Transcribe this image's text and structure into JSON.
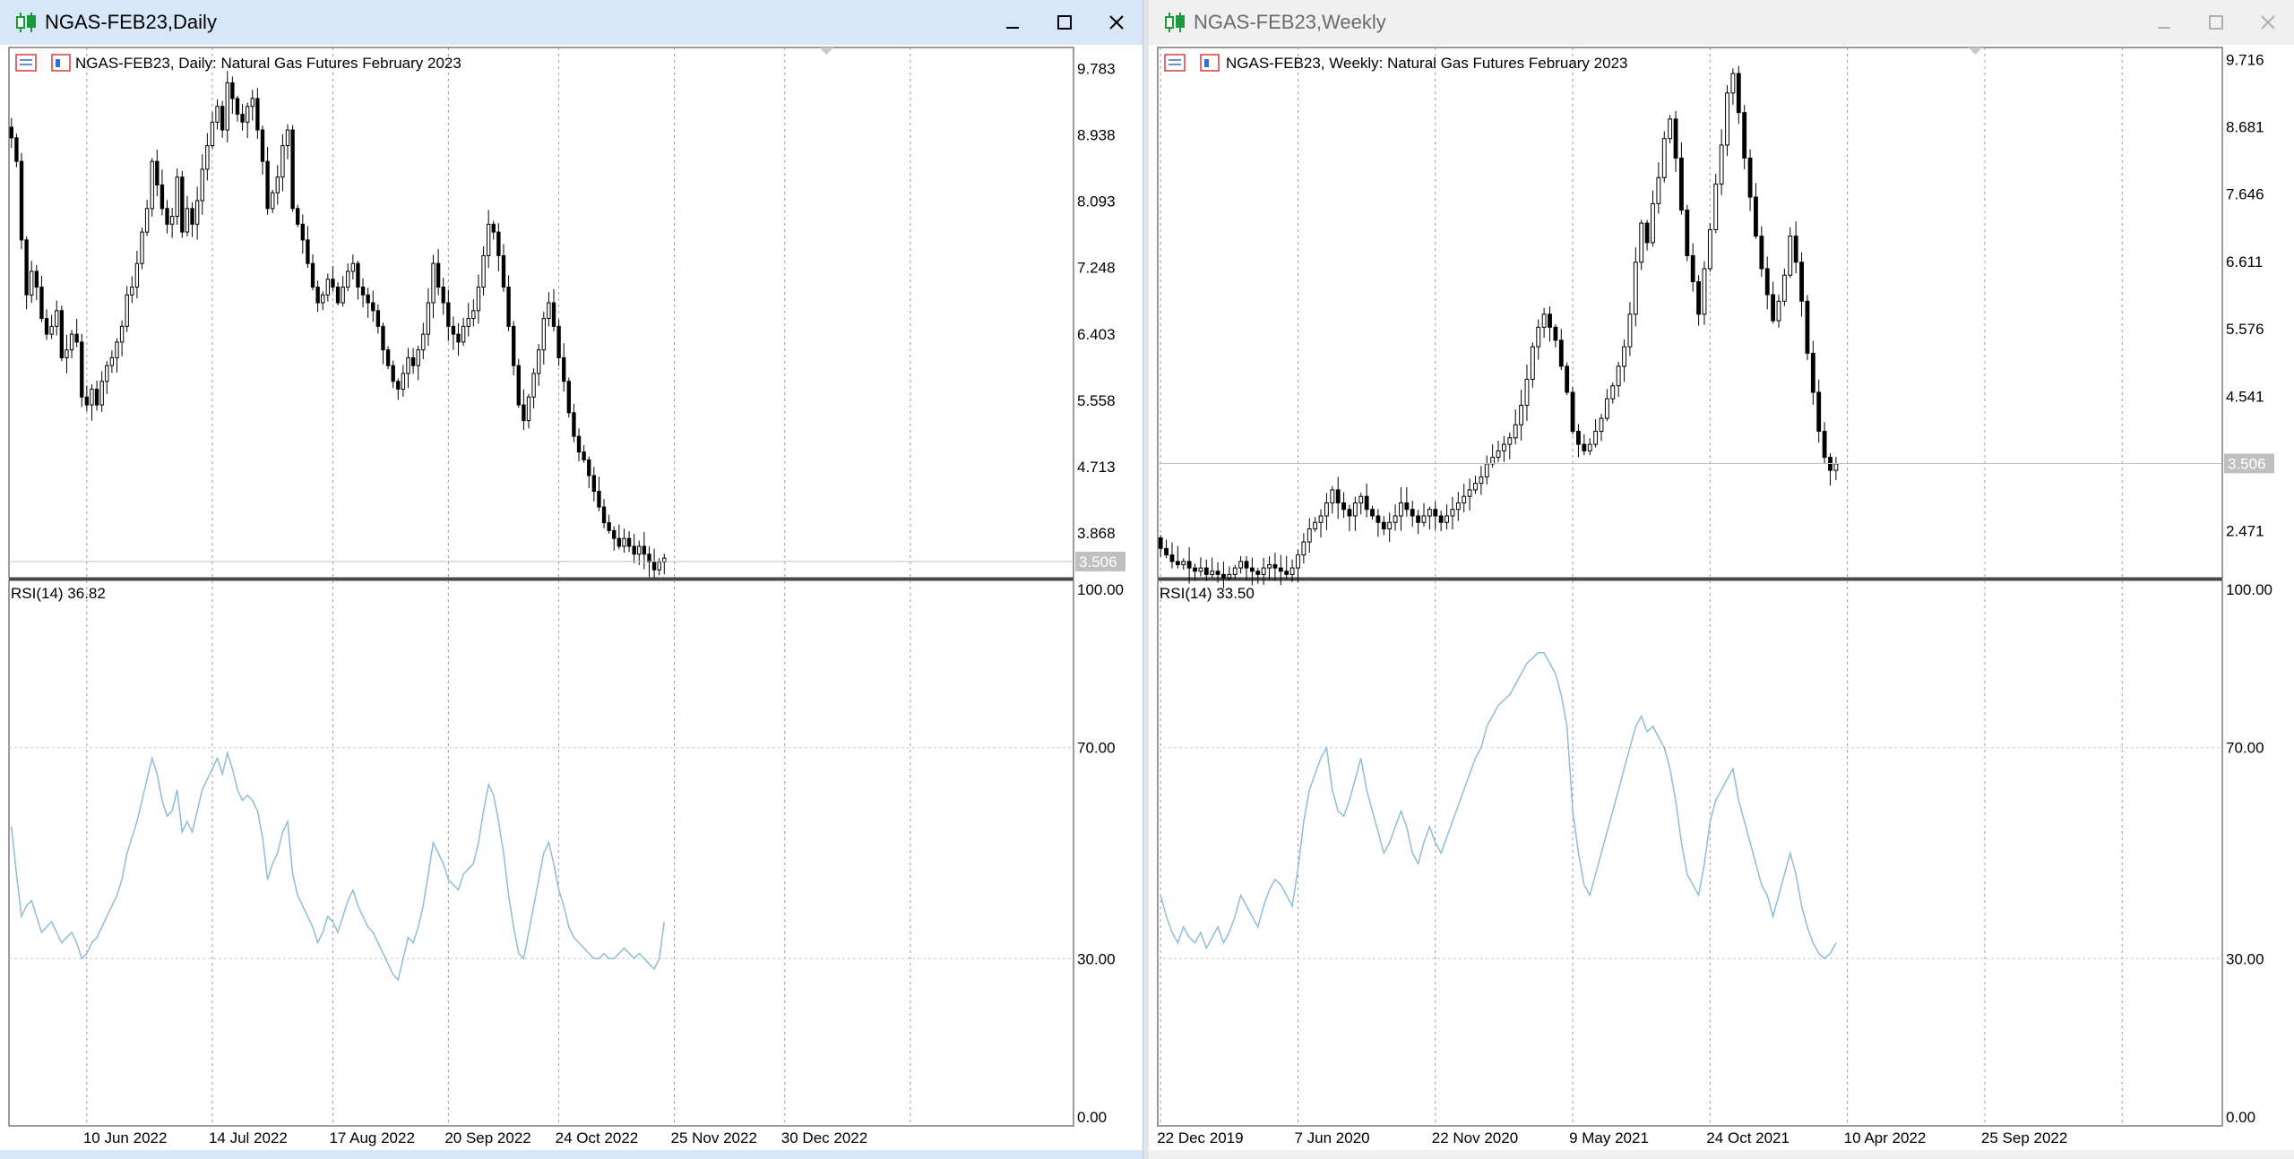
{
  "windows": [
    {
      "title": "NGAS-FEB23,Daily",
      "active": true,
      "legend": "NGAS-FEB23, Daily:  Natural Gas Futures February 2023",
      "rsi_label": "RSI(14) 36.82",
      "current_price": "3.506"
    },
    {
      "title": "NGAS-FEB23,Weekly",
      "active": false,
      "legend": "NGAS-FEB23, Weekly:  Natural Gas Futures February 2023",
      "rsi_label": "RSI(14) 33.50",
      "current_price": "3.506"
    }
  ],
  "colors": {
    "rsi_line": "#8fbcd8",
    "price_marker": "#c0c0c0",
    "grid": "#9a9a9a",
    "candle": "#000000",
    "icon_green": "#1a9a3a"
  },
  "chart_data": [
    {
      "type": "candlestick",
      "symbol": "NGAS-FEB23",
      "timeframe": "Daily",
      "title": "NGAS-FEB23, Daily:  Natural Gas Futures February 2023",
      "price_ticks": [
        9.783,
        8.938,
        8.093,
        7.248,
        6.403,
        5.558,
        4.713,
        3.868
      ],
      "price_tick_labels": [
        "9.783",
        "8.938",
        "8.093",
        "7.248",
        "6.403",
        "5.558",
        "4.713",
        "3.868"
      ],
      "ylim": [
        3.3,
        10.05
      ],
      "current_price": 3.506,
      "x_tick_labels": [
        "10 Jun 2022",
        "14 Jul 2022",
        "17 Aug 2022",
        "20 Sep 2022",
        "24 Oct 2022",
        "25 Nov 2022",
        "30 Dec 2022"
      ],
      "x_tick_index": [
        15,
        40,
        64,
        87,
        109,
        132,
        154
      ],
      "total_slots": 212,
      "close": [
        8.9,
        8.6,
        7.6,
        6.9,
        7.2,
        7.0,
        6.6,
        6.4,
        6.5,
        6.7,
        6.1,
        6.2,
        6.4,
        6.3,
        5.6,
        5.5,
        5.7,
        5.5,
        5.8,
        6.0,
        6.1,
        6.3,
        6.5,
        6.9,
        7.0,
        7.3,
        7.7,
        8.0,
        8.6,
        8.3,
        8.0,
        7.8,
        7.9,
        8.4,
        7.7,
        8.0,
        7.8,
        8.1,
        8.5,
        8.8,
        9.1,
        9.3,
        9.0,
        9.6,
        9.4,
        9.2,
        9.1,
        9.3,
        9.4,
        9.0,
        8.6,
        8.0,
        8.2,
        8.4,
        8.8,
        9.0,
        8.0,
        7.8,
        7.6,
        7.3,
        7.0,
        6.8,
        6.9,
        7.1,
        7.0,
        6.8,
        7.0,
        7.2,
        7.3,
        7.0,
        6.9,
        6.8,
        6.7,
        6.5,
        6.2,
        6.0,
        5.8,
        5.7,
        5.9,
        6.1,
        6.0,
        6.2,
        6.4,
        6.8,
        7.3,
        7.0,
        6.8,
        6.5,
        6.4,
        6.3,
        6.5,
        6.6,
        6.7,
        7.0,
        7.4,
        7.8,
        7.7,
        7.4,
        7.0,
        6.5,
        6.0,
        5.5,
        5.3,
        5.6,
        5.9,
        6.2,
        6.6,
        6.8,
        6.5,
        6.1,
        5.8,
        5.4,
        5.1,
        4.9,
        4.8,
        4.6,
        4.4,
        4.2,
        4.0,
        3.9,
        3.8,
        3.7,
        3.8,
        3.7,
        3.6,
        3.7,
        3.6,
        3.5,
        3.4,
        3.5,
        3.55
      ],
      "rsi": {
        "label": "RSI(14) 36.82",
        "value": 36.82,
        "ylim": [
          0,
          100
        ],
        "levels": [
          100,
          70,
          30,
          0
        ],
        "level_labels": [
          "100.00",
          "70.00",
          "30.00",
          "0.00"
        ],
        "values": [
          55,
          46,
          38,
          40,
          41,
          38,
          35,
          36,
          37,
          35,
          33,
          34,
          35,
          33,
          30,
          31,
          33,
          34,
          36,
          38,
          40,
          42,
          45,
          50,
          53,
          56,
          60,
          64,
          68,
          65,
          60,
          57,
          58,
          62,
          54,
          56,
          54,
          58,
          62,
          64,
          66,
          68,
          65,
          69,
          66,
          62,
          60,
          61,
          60,
          58,
          53,
          45,
          48,
          50,
          54,
          56,
          46,
          42,
          40,
          38,
          36,
          33,
          35,
          38,
          37,
          35,
          38,
          41,
          43,
          40,
          38,
          36,
          35,
          33,
          31,
          29,
          27,
          26,
          30,
          34,
          33,
          36,
          40,
          46,
          52,
          50,
          48,
          45,
          44,
          43,
          46,
          47,
          48,
          52,
          58,
          63,
          61,
          56,
          50,
          42,
          36,
          31,
          30,
          35,
          40,
          45,
          50,
          52,
          48,
          43,
          40,
          36,
          34,
          33,
          32,
          31,
          30,
          30,
          31,
          30,
          30,
          31,
          32,
          31,
          30,
          31,
          30,
          29,
          28,
          30,
          37
        ]
      }
    },
    {
      "type": "candlestick",
      "symbol": "NGAS-FEB23",
      "timeframe": "Weekly",
      "title": "NGAS-FEB23, Weekly:  Natural Gas Futures February 2023",
      "price_ticks": [
        9.716,
        8.681,
        7.646,
        6.611,
        5.576,
        4.541,
        2.471
      ],
      "price_tick_labels": [
        "9.716",
        "8.681",
        "7.646",
        "6.611",
        "5.576",
        "4.541",
        "2.471"
      ],
      "ylim": [
        1.75,
        9.9
      ],
      "current_price": 3.506,
      "x_tick_labels": [
        "22 Dec 2019",
        "7 Jun 2020",
        "22 Nov 2020",
        "9 May 2021",
        "24 Oct 2021",
        "10 Apr 2022",
        "25 Sep 2022"
      ],
      "x_tick_index": [
        0,
        24,
        48,
        72,
        96,
        120,
        144
      ],
      "total_slots": 186,
      "close": [
        2.2,
        2.1,
        2.0,
        1.95,
        2.0,
        1.9,
        1.85,
        1.9,
        1.8,
        1.85,
        1.8,
        1.75,
        1.8,
        1.9,
        2.0,
        1.9,
        1.85,
        1.8,
        1.9,
        1.95,
        1.9,
        1.85,
        1.8,
        1.9,
        2.1,
        2.3,
        2.5,
        2.6,
        2.7,
        2.9,
        3.1,
        2.9,
        2.8,
        2.7,
        2.9,
        3.0,
        2.8,
        2.7,
        2.6,
        2.5,
        2.6,
        2.7,
        2.9,
        2.8,
        2.7,
        2.6,
        2.7,
        2.8,
        2.7,
        2.6,
        2.7,
        2.8,
        2.9,
        3.0,
        3.1,
        3.2,
        3.3,
        3.5,
        3.6,
        3.7,
        3.8,
        3.9,
        4.1,
        4.4,
        4.8,
        5.3,
        5.6,
        5.8,
        5.6,
        5.4,
        5.0,
        4.6,
        4.0,
        3.8,
        3.7,
        3.8,
        4.0,
        4.2,
        4.5,
        4.7,
        5.0,
        5.3,
        5.8,
        6.6,
        7.2,
        6.9,
        7.5,
        7.9,
        8.5,
        8.8,
        8.2,
        7.4,
        6.7,
        6.3,
        5.8,
        6.5,
        7.1,
        7.8,
        8.4,
        9.2,
        9.5,
        8.9,
        8.2,
        7.6,
        7.0,
        6.5,
        6.1,
        5.7,
        6.0,
        6.4,
        7.0,
        6.6,
        6.0,
        5.2,
        4.6,
        4.0,
        3.6,
        3.4,
        3.5
      ],
      "rsi": {
        "label": "RSI(14) 33.50",
        "value": 33.5,
        "ylim": [
          0,
          100
        ],
        "levels": [
          100,
          70,
          30,
          0
        ],
        "level_labels": [
          "100.00",
          "70.00",
          "30.00",
          "0.00"
        ],
        "values": [
          42,
          38,
          35,
          33,
          36,
          34,
          33,
          35,
          32,
          34,
          36,
          33,
          35,
          38,
          42,
          40,
          38,
          36,
          40,
          43,
          45,
          44,
          42,
          40,
          47,
          56,
          62,
          65,
          68,
          70,
          62,
          58,
          57,
          60,
          64,
          68,
          62,
          58,
          54,
          50,
          52,
          55,
          58,
          55,
          50,
          48,
          52,
          55,
          52,
          50,
          53,
          56,
          59,
          62,
          65,
          68,
          70,
          74,
          76,
          78,
          79,
          80,
          82,
          84,
          86,
          87,
          88,
          88,
          86,
          84,
          80,
          74,
          58,
          50,
          44,
          42,
          46,
          50,
          54,
          58,
          62,
          66,
          70,
          74,
          76,
          73,
          74,
          72,
          70,
          66,
          60,
          52,
          46,
          44,
          42,
          48,
          56,
          60,
          62,
          64,
          66,
          60,
          56,
          52,
          48,
          44,
          42,
          38,
          42,
          46,
          50,
          46,
          40,
          36,
          33,
          31,
          30,
          31,
          33
        ]
      }
    }
  ]
}
